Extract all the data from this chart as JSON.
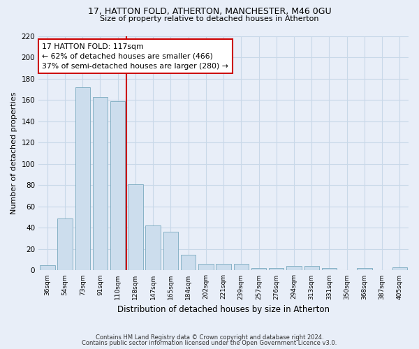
{
  "title_line1": "17, HATTON FOLD, ATHERTON, MANCHESTER, M46 0GU",
  "title_line2": "Size of property relative to detached houses in Atherton",
  "xlabel": "Distribution of detached houses by size in Atherton",
  "ylabel": "Number of detached properties",
  "categories": [
    "36sqm",
    "54sqm",
    "73sqm",
    "91sqm",
    "110sqm",
    "128sqm",
    "147sqm",
    "165sqm",
    "184sqm",
    "202sqm",
    "221sqm",
    "239sqm",
    "257sqm",
    "276sqm",
    "294sqm",
    "313sqm",
    "331sqm",
    "350sqm",
    "368sqm",
    "387sqm",
    "405sqm"
  ],
  "values": [
    5,
    49,
    172,
    163,
    159,
    81,
    42,
    36,
    15,
    6,
    6,
    6,
    2,
    2,
    4,
    4,
    2,
    0,
    2,
    0,
    3
  ],
  "bar_color": "#ccdded",
  "bar_edge_color": "#7aaabf",
  "grid_color": "#c8d8e8",
  "background_color": "#e8eef8",
  "property_bin_index": 4,
  "annotation_text": "17 HATTON FOLD: 117sqm\n← 62% of detached houses are smaller (466)\n37% of semi-detached houses are larger (280) →",
  "annotation_box_color": "#ffffff",
  "annotation_edge_color": "#cc0000",
  "redline_color": "#cc0000",
  "ylim": [
    0,
    220
  ],
  "yticks": [
    0,
    20,
    40,
    60,
    80,
    100,
    120,
    140,
    160,
    180,
    200,
    220
  ],
  "footer_line1": "Contains HM Land Registry data © Crown copyright and database right 2024.",
  "footer_line2": "Contains public sector information licensed under the Open Government Licence v3.0."
}
